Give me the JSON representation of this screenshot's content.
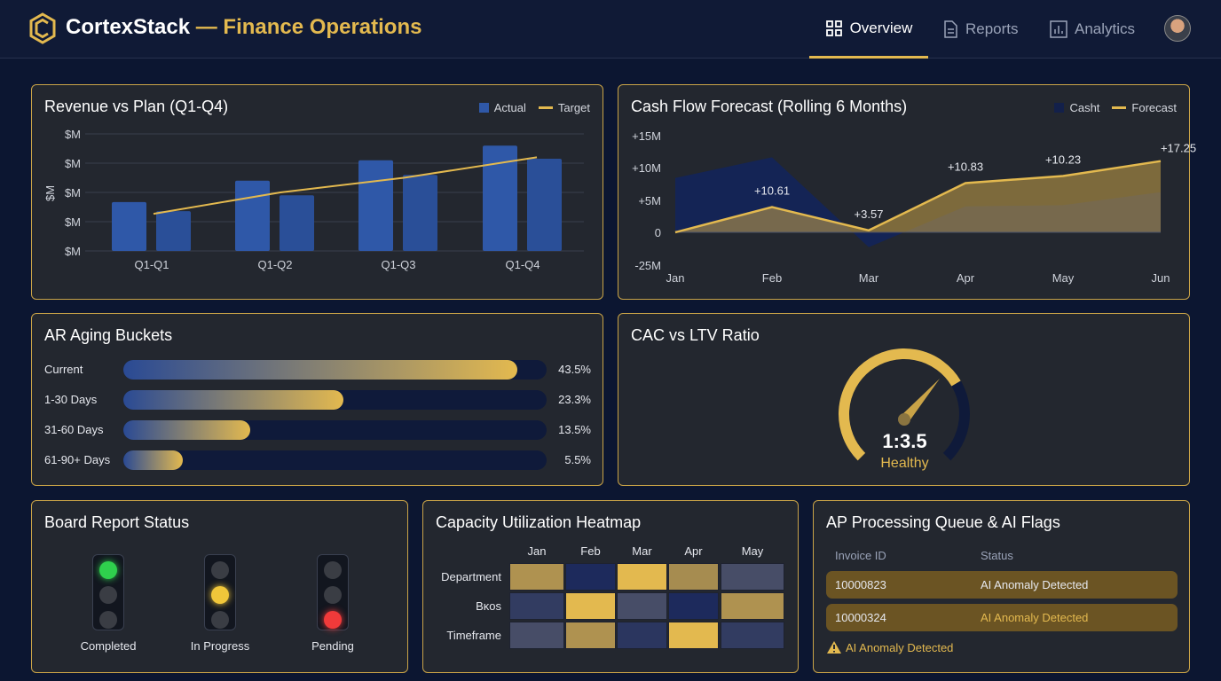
{
  "header": {
    "brand": "CortexStack",
    "separator": " — ",
    "subtitle": "Finance Operations",
    "nav": [
      {
        "label": "Overview",
        "icon": "grid-icon",
        "active": true
      },
      {
        "label": "Reports",
        "icon": "document-icon"
      },
      {
        "label": "Analytics",
        "icon": "bar-chart-icon"
      }
    ]
  },
  "colors": {
    "accent": "#e3b94f",
    "navy": "#2a4a94",
    "bg": "#0c1631",
    "panel": "#23272f"
  },
  "chart_data": [
    {
      "type": "bar",
      "title": "Revenue vs Plan (Q1-Q4)",
      "ylabel": "$M",
      "yticks": [
        "$M",
        "$M",
        "$M",
        "$M",
        "$M"
      ],
      "ylim": [
        0,
        4
      ],
      "grid": true,
      "legend": "top-right",
      "categories": [
        "Q1-Q1",
        "Q1-Q2",
        "Q1-Q3",
        "Q1-Q4"
      ],
      "series": [
        {
          "name": "Actual",
          "kind": "bar",
          "values": [
            1.67,
            2.4,
            3.1,
            3.6
          ]
        },
        {
          "kind": "bar",
          "values": [
            1.36,
            1.9,
            2.6,
            3.15
          ]
        },
        {
          "name": "Target",
          "kind": "line",
          "values": [
            1.27,
            2.0,
            2.5,
            3.2
          ]
        }
      ]
    },
    {
      "type": "area",
      "title": "Cash Flow Forecast (Rolling 6 Months)",
      "legend": "top-right",
      "yticks": [
        "+15M",
        "+10M",
        "+5M",
        "0",
        "-25M"
      ],
      "ylim": [
        -5,
        15
      ],
      "categories": [
        "Jan",
        "Feb",
        "Mar",
        "Apr",
        "May",
        "Jun"
      ],
      "series": [
        {
          "name": "Casht",
          "values": [
            8.4,
            11.6,
            -2.3,
            4,
            4.2,
            6.2
          ]
        },
        {
          "name": "Forecast",
          "values": [
            0,
            3.9,
            0.3,
            7.6,
            8.7,
            11
          ]
        }
      ],
      "annotations": [
        "+10.61",
        "+3.57",
        "+10.83",
        "+10.23",
        "+17.25"
      ]
    }
  ],
  "ar": {
    "title": "AR Aging Buckets",
    "items": [
      {
        "label": "Current",
        "value": "43.5%",
        "fill": 0.93
      },
      {
        "label": "1-30 Days",
        "value": "23.3%",
        "fill": 0.52
      },
      {
        "label": "31-60 Days",
        "value": "13.5%",
        "fill": 0.3
      },
      {
        "label": "61-90+ Days",
        "value": "5.5%",
        "fill": 0.14
      }
    ]
  },
  "gauge": {
    "title": "CAC vs LTV Ratio",
    "value": "1:3.5",
    "status": "Healthy",
    "fill": 0.72
  },
  "board": {
    "title": "Board Report Status",
    "lights": [
      {
        "label": "Completed",
        "on": "green"
      },
      {
        "label": "In Progress",
        "on": "yellow"
      },
      {
        "label": "Pending",
        "on": "red"
      }
    ]
  },
  "heatmap": {
    "title": "Capacity Utilization Heatmap",
    "cols": [
      "Jan",
      "Feb",
      "Mar",
      "Apr",
      "May"
    ],
    "rows": [
      "Department",
      "Bĸos",
      "Timeframe"
    ],
    "values": [
      [
        0.7,
        0.05,
        1,
        0.65,
        0.35
      ],
      [
        0.2,
        1,
        0.35,
        0.05,
        0.7
      ],
      [
        0.35,
        0.7,
        0.15,
        1,
        0.2
      ]
    ]
  },
  "ap": {
    "title": "AP Processing Queue & AI Flags",
    "col_invoice": "Invoice ID",
    "col_status": "Status",
    "rows": [
      {
        "id": "10000823",
        "status": "AI Anomaly Detected"
      },
      {
        "id": "10000324",
        "status": "AI Anomaly Detected"
      }
    ],
    "alert": "AI Anomaly Detected"
  }
}
